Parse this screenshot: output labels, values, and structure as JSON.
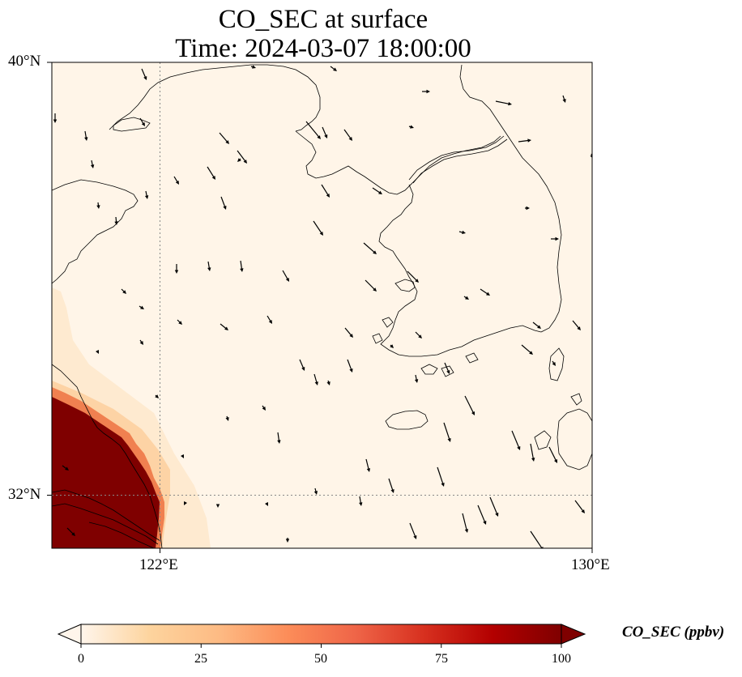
{
  "title": {
    "line1": "CO_SEC at surface",
    "line2": "Time: 2024-03-07 18:00:00"
  },
  "map": {
    "lon_range": [
      120,
      130
    ],
    "lat_range": [
      31,
      40
    ],
    "lat_ticks": [
      {
        "value": 40,
        "label": "40°N"
      },
      {
        "value": 32,
        "label": "32°N"
      }
    ],
    "lon_ticks": [
      {
        "value": 122,
        "label": "122°E"
      },
      {
        "value": 130,
        "label": "130°E"
      }
    ],
    "gridlines": {
      "lon": [
        122
      ],
      "lat": [
        32
      ],
      "style": "dotted"
    },
    "background_color": "#fff5e8",
    "coastline_color": "#000000",
    "field": "CO_SEC",
    "field_description": "high concentration plume in the southwest corner near the coast, near-zero elsewhere"
  },
  "colorbar": {
    "label": "CO_SEC (ppbv)",
    "min": 0,
    "max": 100,
    "extend": "both",
    "ticks": [
      {
        "value": 0,
        "label": "0"
      },
      {
        "value": 25,
        "label": "25"
      },
      {
        "value": 50,
        "label": "50"
      },
      {
        "value": 75,
        "label": "75"
      },
      {
        "value": 100,
        "label": "100"
      }
    ],
    "colormap": [
      "#fff5eb",
      "#fdd49e",
      "#fdbb84",
      "#fc8d59",
      "#ef6548",
      "#d7301f",
      "#b30000",
      "#7f0000"
    ]
  }
}
